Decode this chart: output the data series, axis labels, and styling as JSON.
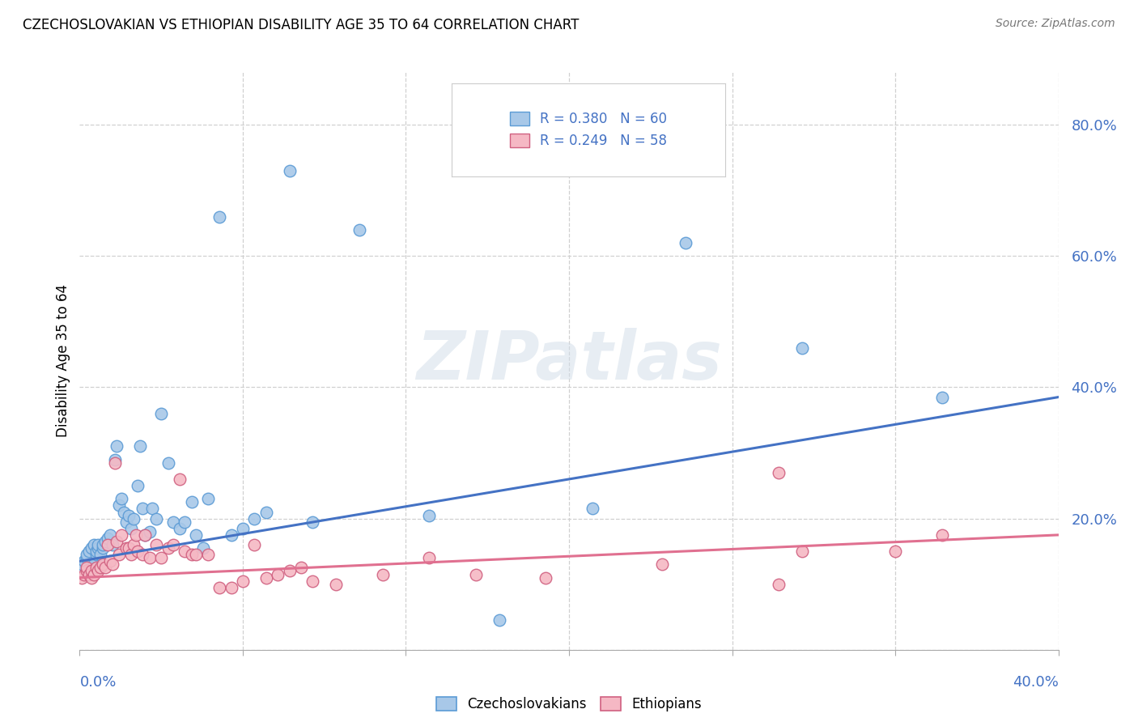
{
  "title": "CZECHOSLOVAKIAN VS ETHIOPIAN DISABILITY AGE 35 TO 64 CORRELATION CHART",
  "source": "Source: ZipAtlas.com",
  "ylabel": "Disability Age 35 to 64",
  "ylim": [
    0.0,
    0.88
  ],
  "xlim": [
    0.0,
    0.42
  ],
  "ytick_vals": [
    0.0,
    0.2,
    0.4,
    0.6,
    0.8
  ],
  "ytick_labels": [
    "",
    "20.0%",
    "40.0%",
    "60.0%",
    "80.0%"
  ],
  "xtick_vals": [
    0.0,
    0.07,
    0.14,
    0.21,
    0.28,
    0.35,
    0.42
  ],
  "color_czech": "#a8c8e8",
  "color_czech_edge": "#5b9bd5",
  "color_ethiopian": "#f5b8c4",
  "color_ethiopian_edge": "#d06080",
  "color_czech_line": "#4472c4",
  "color_ethiopian_line": "#e07090",
  "background_color": "#ffffff",
  "grid_color": "#d0d0d0",
  "tick_color": "#4472c4",
  "watermark_text": "ZIPatlas",
  "legend_label1": "R = 0.380   N = 60",
  "legend_label2": "R = 0.249   N = 58",
  "czech_x": [
    0.001,
    0.002,
    0.003,
    0.003,
    0.004,
    0.004,
    0.005,
    0.005,
    0.006,
    0.006,
    0.007,
    0.007,
    0.008,
    0.008,
    0.009,
    0.01,
    0.01,
    0.011,
    0.012,
    0.013,
    0.014,
    0.015,
    0.016,
    0.017,
    0.018,
    0.019,
    0.02,
    0.021,
    0.022,
    0.023,
    0.025,
    0.026,
    0.027,
    0.028,
    0.03,
    0.031,
    0.033,
    0.035,
    0.038,
    0.04,
    0.043,
    0.045,
    0.048,
    0.05,
    0.053,
    0.055,
    0.06,
    0.065,
    0.07,
    0.075,
    0.08,
    0.09,
    0.1,
    0.12,
    0.15,
    0.18,
    0.22,
    0.26,
    0.31,
    0.37
  ],
  "czech_y": [
    0.13,
    0.135,
    0.14,
    0.145,
    0.12,
    0.15,
    0.125,
    0.155,
    0.13,
    0.16,
    0.145,
    0.15,
    0.155,
    0.16,
    0.145,
    0.155,
    0.16,
    0.165,
    0.17,
    0.175,
    0.16,
    0.29,
    0.31,
    0.22,
    0.23,
    0.21,
    0.195,
    0.205,
    0.185,
    0.2,
    0.25,
    0.31,
    0.215,
    0.175,
    0.18,
    0.215,
    0.2,
    0.36,
    0.285,
    0.195,
    0.185,
    0.195,
    0.225,
    0.175,
    0.155,
    0.23,
    0.66,
    0.175,
    0.185,
    0.2,
    0.21,
    0.73,
    0.195,
    0.64,
    0.205,
    0.045,
    0.215,
    0.62,
    0.46,
    0.385
  ],
  "ethiopian_x": [
    0.001,
    0.002,
    0.003,
    0.003,
    0.004,
    0.005,
    0.005,
    0.006,
    0.007,
    0.008,
    0.009,
    0.01,
    0.011,
    0.012,
    0.013,
    0.014,
    0.015,
    0.016,
    0.017,
    0.018,
    0.02,
    0.021,
    0.022,
    0.023,
    0.024,
    0.025,
    0.027,
    0.028,
    0.03,
    0.033,
    0.035,
    0.038,
    0.04,
    0.043,
    0.045,
    0.048,
    0.05,
    0.055,
    0.06,
    0.065,
    0.07,
    0.075,
    0.08,
    0.085,
    0.09,
    0.095,
    0.1,
    0.11,
    0.13,
    0.15,
    0.17,
    0.2,
    0.25,
    0.3,
    0.35,
    0.3,
    0.31,
    0.37
  ],
  "ethiopian_y": [
    0.11,
    0.115,
    0.12,
    0.125,
    0.115,
    0.11,
    0.12,
    0.115,
    0.125,
    0.12,
    0.125,
    0.13,
    0.125,
    0.16,
    0.135,
    0.13,
    0.285,
    0.165,
    0.145,
    0.175,
    0.155,
    0.155,
    0.145,
    0.16,
    0.175,
    0.15,
    0.145,
    0.175,
    0.14,
    0.16,
    0.14,
    0.155,
    0.16,
    0.26,
    0.15,
    0.145,
    0.145,
    0.145,
    0.095,
    0.095,
    0.105,
    0.16,
    0.11,
    0.115,
    0.12,
    0.125,
    0.105,
    0.1,
    0.115,
    0.14,
    0.115,
    0.11,
    0.13,
    0.1,
    0.15,
    0.27,
    0.15,
    0.175
  ],
  "czech_line_x": [
    0.0,
    0.42
  ],
  "czech_line_y": [
    0.135,
    0.385
  ],
  "ethiopian_line_x": [
    0.0,
    0.42
  ],
  "ethiopian_line_y": [
    0.11,
    0.175
  ]
}
